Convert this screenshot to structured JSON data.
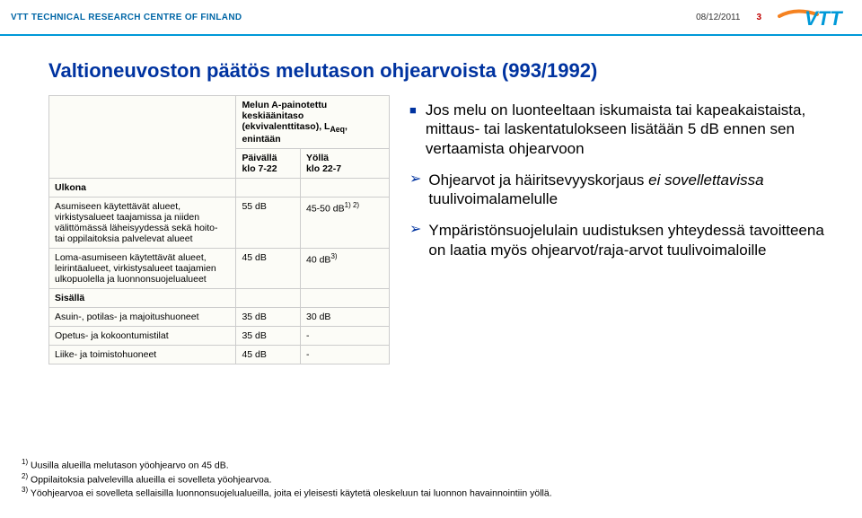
{
  "header": {
    "org": "VTT TECHNICAL RESEARCH CENTRE OF FINLAND",
    "date": "08/12/2011",
    "page": "3",
    "logo_text": "VTT",
    "logo_color": "#0099d8",
    "swoosh_color": "#f58220"
  },
  "title": "Valtioneuvoston päätös melutason ohjearvoista (993/1992)",
  "table": {
    "head": {
      "col1": "",
      "col2_lines": [
        "Melun A-painotettu",
        "keskiäänitaso",
        "(ekvivalenttitaso), L",
        "enintään"
      ],
      "col2_sub": "Aeq",
      "sub1_a": "Päivällä",
      "sub1_b": "klo 7-22",
      "sub2_a": "Yöllä",
      "sub2_b": "klo 22-7"
    },
    "rows": [
      {
        "c1_bold": "Ulkona",
        "c2": "",
        "c3": ""
      },
      {
        "c1": "Asumiseen käytettävät alueet, virkistysalueet taajamissa ja niiden välittömässä läheisyydessä sekä hoito- tai oppilaitoksia palvelevat alueet",
        "c2": "55 dB",
        "c3_html": "45-50 dB<sup>1) 2)</sup>"
      },
      {
        "c1": "Loma-asumiseen käytettävät alueet, leirintäalueet, virkistysalueet taajamien ulkopuolella ja luonnonsuojelualueet",
        "c2": "45 dB",
        "c3_html": "40 dB<sup>3)</sup>"
      },
      {
        "c1_bold": "Sisällä",
        "c2": "",
        "c3": ""
      },
      {
        "c1": "Asuin-, potilas- ja majoitushuoneet",
        "c2": "35 dB",
        "c3": "30 dB"
      },
      {
        "c1": "Opetus- ja kokoontumistilat",
        "c2": "35 dB",
        "c3": "-"
      },
      {
        "c1": "Liike- ja toimistohuoneet",
        "c2": "45 dB",
        "c3": "-"
      }
    ]
  },
  "bullets": {
    "main": "Jos melu on luonteeltaan iskumaista tai kapeakaistaista, mittaus- tai laskentatulokseen lisätään 5 dB ennen sen vertaamista ohjearvoon",
    "arrow1_prefix": "Ohjearvot ja häiritsevyyskorjaus ",
    "arrow1_italic": "ei sovellettavissa",
    "arrow1_suffix": " tuulivoimalamelulle",
    "arrow2": "Ympäristönsuojelulain uudistuksen yhteydessä tavoitteena on laatia myös ohjearvot/raja-arvot tuulivoimaloille"
  },
  "footnotes": {
    "f1": "Uusilla alueilla melutason yöohjearvo on 45 dB.",
    "f2": "Oppilaitoksia palvelevilla alueilla ei sovelleta yöohjearvoa.",
    "f3": "Yöohjearvoa ei sovelleta sellaisilla luonnonsuojelualueilla, joita ei yleisesti käytetä oleskeluun tai luonnon havainnointiin yöllä."
  }
}
